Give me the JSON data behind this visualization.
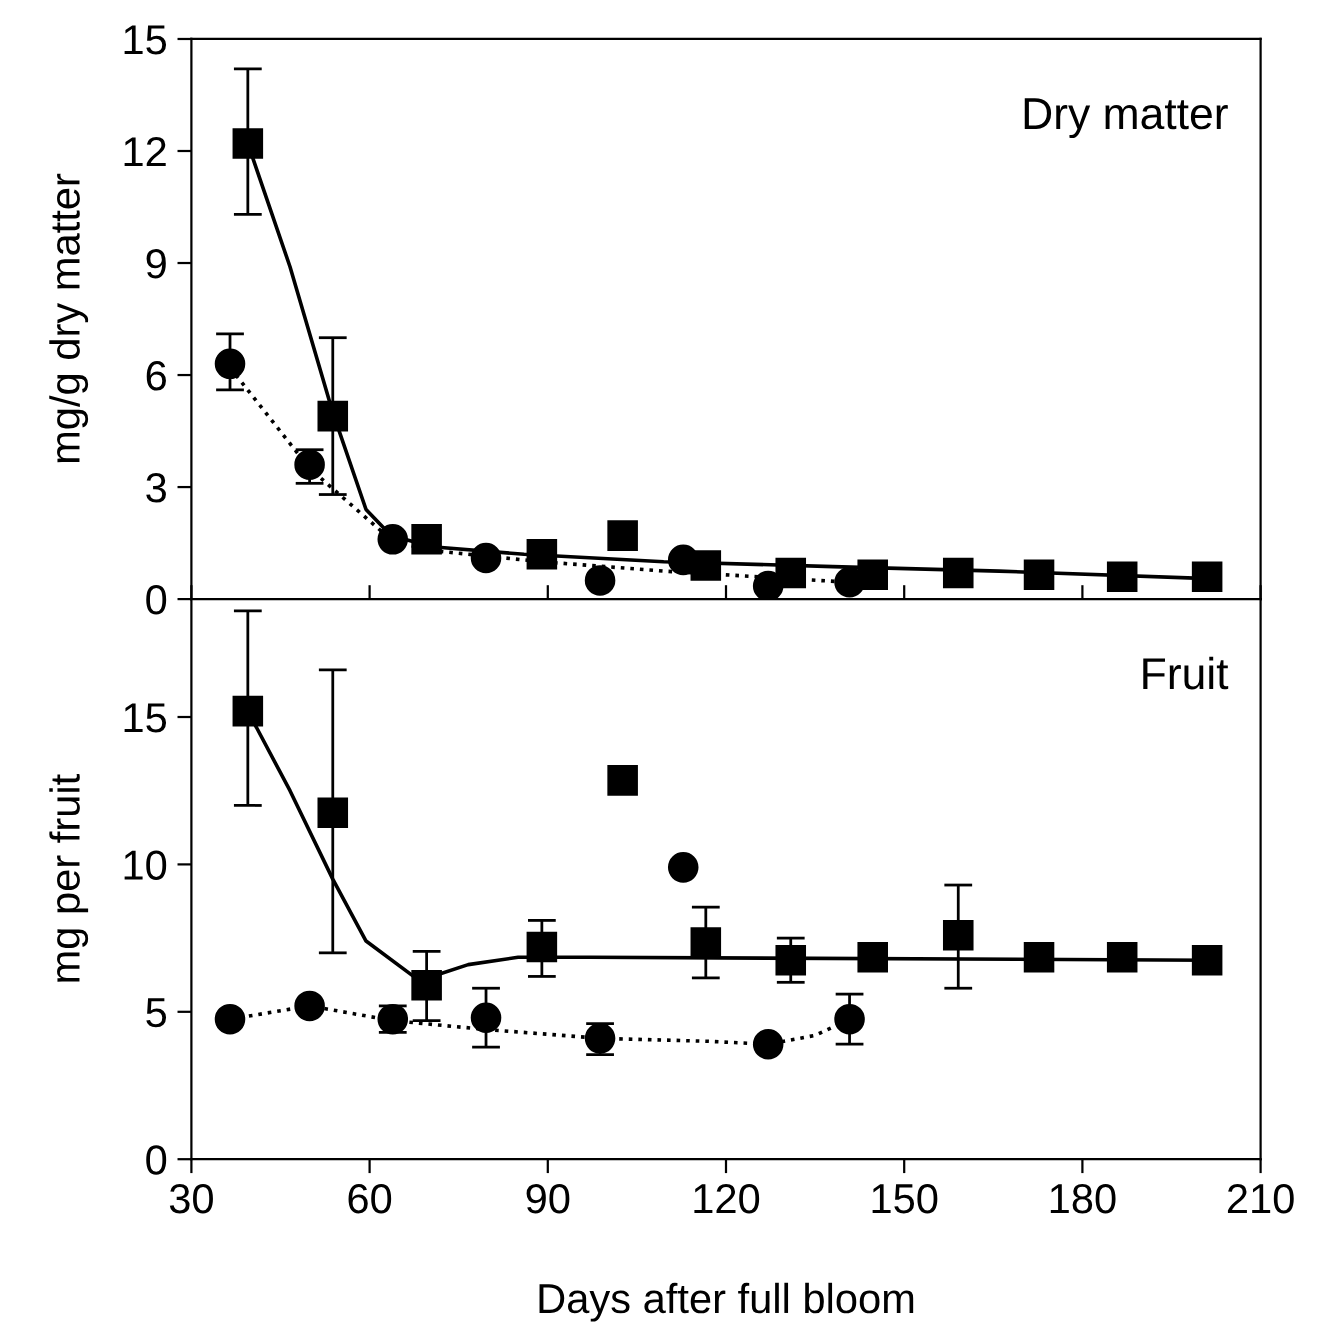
{
  "chart_data": [
    {
      "type": "scatter",
      "annotations": [
        "Dry matter"
      ],
      "ylabel": "mg/g dry matter",
      "xlim": [
        30,
        210
      ],
      "xticks": [
        30,
        60,
        90,
        120,
        150,
        180,
        210
      ],
      "ylim": [
        0,
        15
      ],
      "yticks": [
        0,
        3,
        6,
        9,
        12,
        15
      ],
      "tick_labels": "y",
      "grid": false,
      "legend": false,
      "series": [
        {
          "marker": "square",
          "color": "#000000",
          "x": [
            39.5,
            53.8,
            69.6,
            89,
            102.6,
            116.6,
            130.9,
            144.7,
            159.1,
            172.7,
            186.7,
            201
          ],
          "values": [
            12.2,
            4.9,
            1.6,
            1.2,
            1.7,
            0.9,
            0.7,
            0.65,
            0.7,
            0.65,
            0.6,
            0.6
          ],
          "errors": [
            [
              10.3,
              14.2
            ],
            [
              2.8,
              7.0
            ],
            null,
            null,
            null,
            null,
            null,
            null,
            null,
            null,
            null,
            null
          ]
        },
        {
          "marker": "circle",
          "color": "#000000",
          "x": [
            36.5,
            49.9,
            63.9,
            79.6,
            98.8,
            112.8,
            127.1,
            140.8
          ],
          "values": [
            6.3,
            3.6,
            1.6,
            1.1,
            0.5,
            1.05,
            0.35,
            0.45
          ],
          "errors": [
            [
              5.6,
              7.1
            ],
            [
              3.1,
              4.0
            ],
            null,
            null,
            null,
            null,
            null,
            null
          ]
        },
        {
          "type": "line",
          "marker": "none",
          "line_style": "solid",
          "color": "#000000",
          "x": [
            39.5,
            46.6,
            53.8,
            59.4,
            63.6,
            70.5,
            86,
            109.5,
            138,
            166,
            201
          ],
          "values": [
            12.2,
            8.9,
            5.0,
            2.4,
            1.7,
            1.4,
            1.2,
            1.0,
            0.87,
            0.75,
            0.55
          ]
        },
        {
          "type": "line",
          "marker": "none",
          "line_style": "dotted",
          "color": "#000000",
          "x": [
            36.5,
            49.9,
            63.9,
            70.5,
            89,
            109.5,
            140.8
          ],
          "values": [
            6.2,
            3.5,
            1.55,
            1.3,
            1.0,
            0.75,
            0.45
          ]
        }
      ]
    },
    {
      "type": "scatter",
      "annotations": [
        "Fruit"
      ],
      "ylabel": "mg per fruit",
      "xlabel": "Days after full bloom",
      "xlim": [
        30,
        210
      ],
      "xticks": [
        30,
        60,
        90,
        120,
        150,
        180,
        210
      ],
      "ylim": [
        0,
        19
      ],
      "yticks": [
        0,
        5,
        10,
        15
      ],
      "grid": false,
      "legend": false,
      "series": [
        {
          "marker": "square",
          "color": "#000000",
          "x": [
            39.5,
            53.8,
            69.6,
            89,
            102.6,
            116.6,
            130.9,
            144.7,
            159.1,
            172.7,
            186.7,
            201
          ],
          "values": [
            15.2,
            11.75,
            5.9,
            7.2,
            12.85,
            7.35,
            6.75,
            6.85,
            7.6,
            6.85,
            6.85,
            6.75
          ],
          "errors": [
            [
              12.0,
              18.6
            ],
            [
              7.0,
              16.6
            ],
            [
              4.7,
              7.05
            ],
            [
              6.2,
              8.1
            ],
            null,
            [
              6.15,
              8.55
            ],
            [
              6.0,
              7.5
            ],
            null,
            [
              5.8,
              9.3
            ],
            null,
            null,
            null
          ]
        },
        {
          "marker": "circle",
          "color": "#000000",
          "x": [
            36.5,
            49.9,
            63.9,
            79.6,
            98.8,
            112.8,
            127.1,
            140.8
          ],
          "values": [
            4.75,
            5.2,
            4.75,
            4.8,
            4.1,
            9.9,
            3.9,
            4.75
          ],
          "errors": [
            null,
            null,
            [
              4.3,
              5.2
            ],
            [
              3.8,
              5.8
            ],
            [
              3.55,
              4.6
            ],
            null,
            null,
            [
              3.9,
              5.6
            ]
          ]
        },
        {
          "type": "line",
          "marker": "none",
          "line_style": "solid",
          "color": "#000000",
          "x": [
            39.5,
            46.6,
            53.8,
            59.4,
            67.4,
            70.5,
            76.6,
            85,
            97.2,
            201
          ],
          "values": [
            15.2,
            12.5,
            9.5,
            7.4,
            6.2,
            6.2,
            6.6,
            6.85,
            6.85,
            6.75
          ]
        },
        {
          "type": "line",
          "marker": "none",
          "line_style": "dotted",
          "color": "#000000",
          "x": [
            36.5,
            49.9,
            63.9,
            79.6,
            98.8,
            117,
            127.1,
            135,
            140.8
          ],
          "values": [
            4.75,
            5.2,
            4.7,
            4.4,
            4.1,
            4.0,
            3.9,
            4.2,
            4.75
          ]
        }
      ]
    }
  ]
}
